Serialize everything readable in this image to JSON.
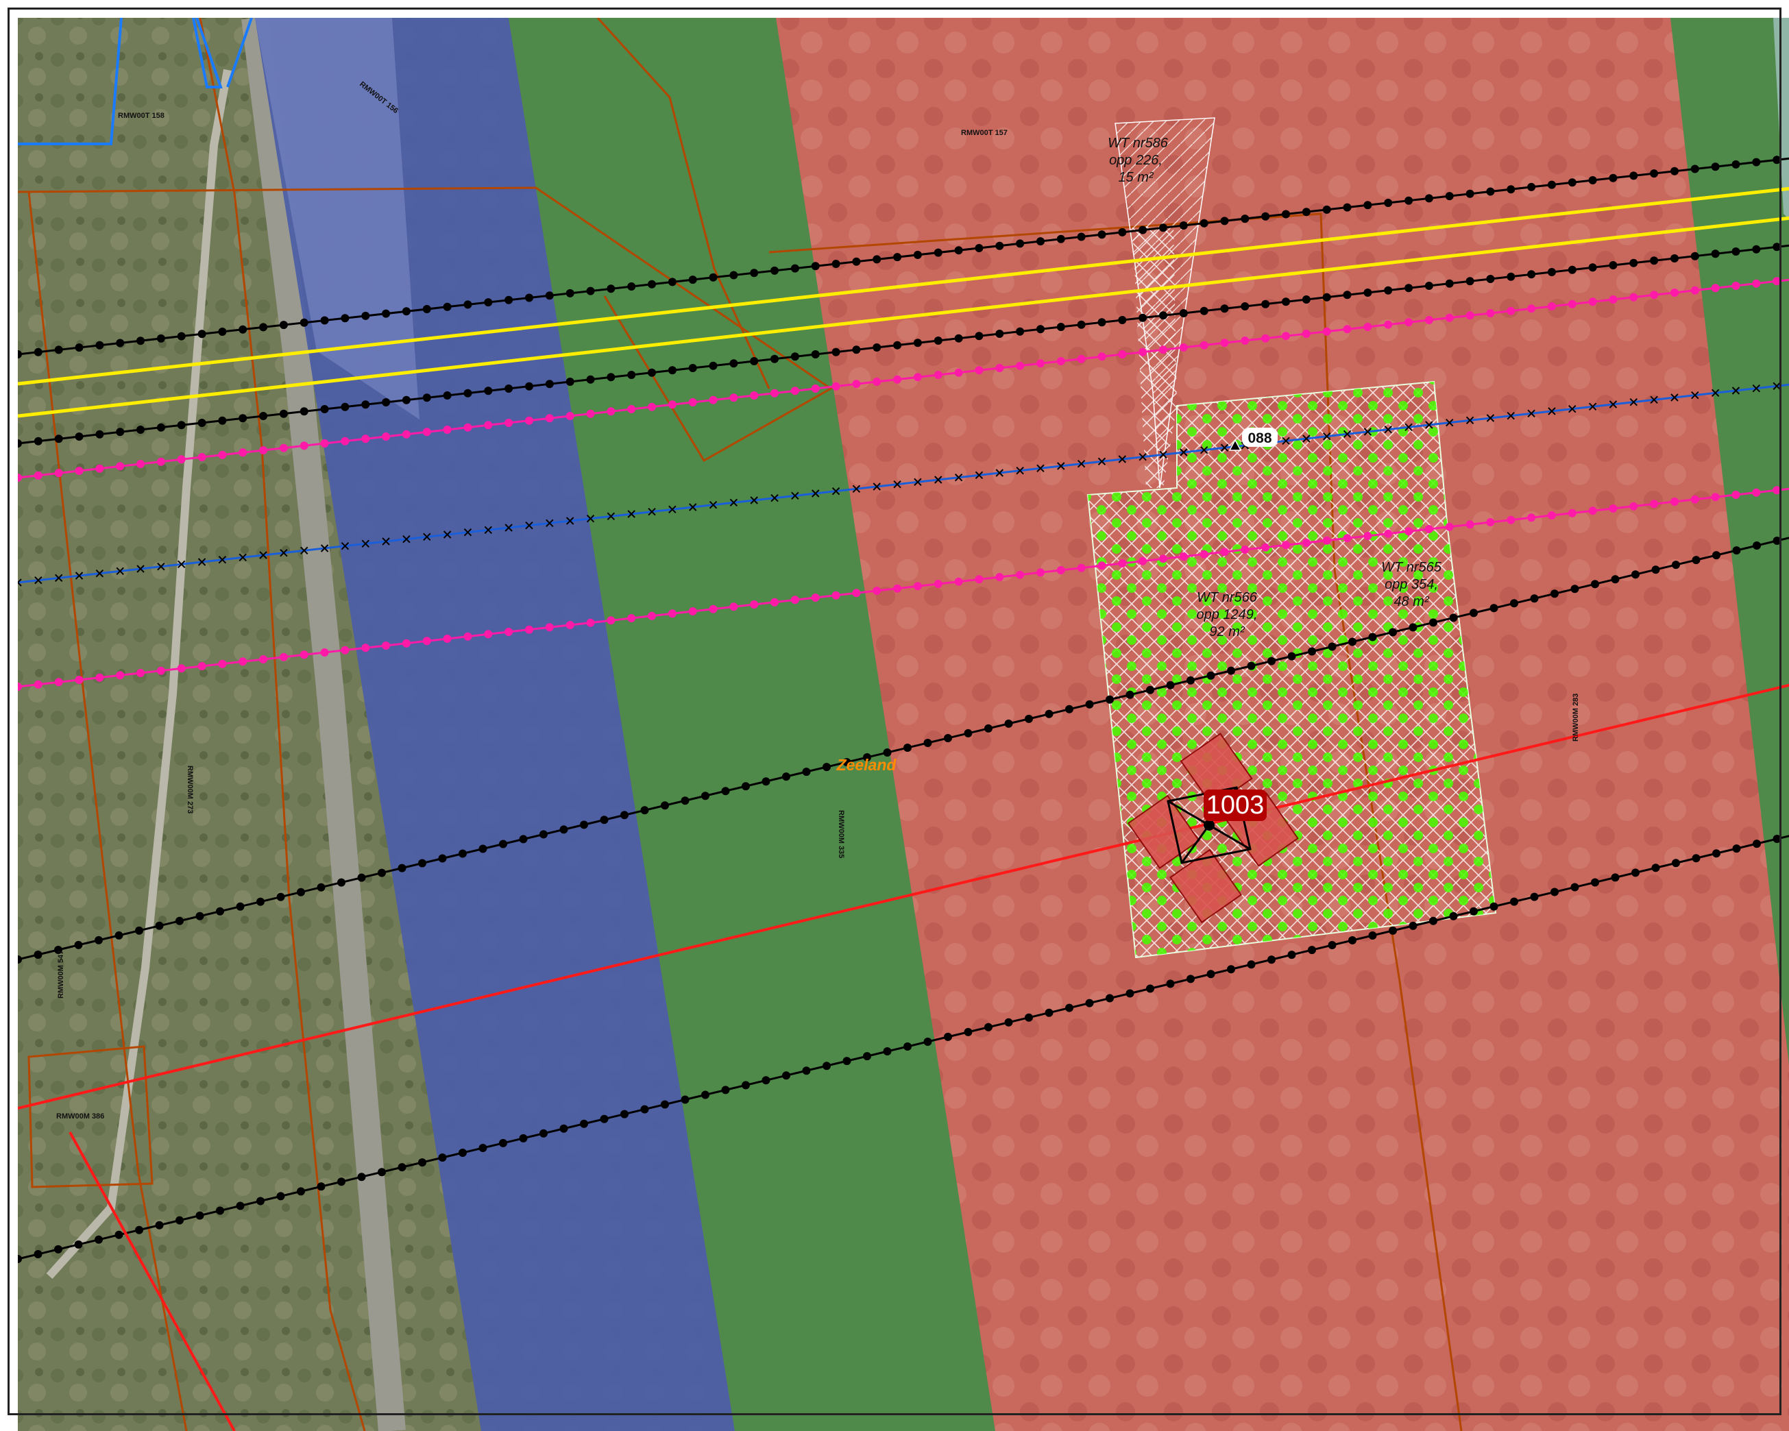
{
  "map": {
    "region_label": "Zeeland",
    "colors": {
      "background_aerial": "#6f7a55",
      "water_blue": "#4a5fa8",
      "green_zone": "#4f8a4a",
      "red_zone": "#c96a5e",
      "black_line": "#000000",
      "magenta_line": "#ff1aa8",
      "yellow_line": "#ffee00",
      "blue_line": "#1a5fd9",
      "red_line": "#ff1a1a",
      "parcel_border": "#b34700",
      "hatch_fill": "#ffffff",
      "tree_green": "#44ff00",
      "turbine_red": "#b30000"
    },
    "parcel_labels": [
      {
        "id": "p1",
        "text": "RMW00T 158"
      },
      {
        "id": "p2",
        "text": "RMW00T 156"
      },
      {
        "id": "p3",
        "text": "RMW00T 157"
      },
      {
        "id": "p4",
        "text": "RMW00M 273"
      },
      {
        "id": "p5",
        "text": "RMW00M 335"
      },
      {
        "id": "p6",
        "text": "RMW00M 283"
      },
      {
        "id": "p7",
        "text": "RMW00M 547"
      },
      {
        "id": "p8",
        "text": "RMW00M 386"
      }
    ],
    "wt_labels": [
      {
        "id": "wt586",
        "lines": [
          "WT nr586",
          "opp 226,",
          "15 m²"
        ]
      },
      {
        "id": "wt566",
        "lines": [
          "WT nr566",
          "opp 1249,",
          "92 m²"
        ]
      },
      {
        "id": "wt565",
        "lines": [
          "WT nr565",
          "opp 354,",
          "48 m²"
        ]
      }
    ],
    "turbine": {
      "label": "1003"
    },
    "marker": {
      "label": "088"
    }
  }
}
